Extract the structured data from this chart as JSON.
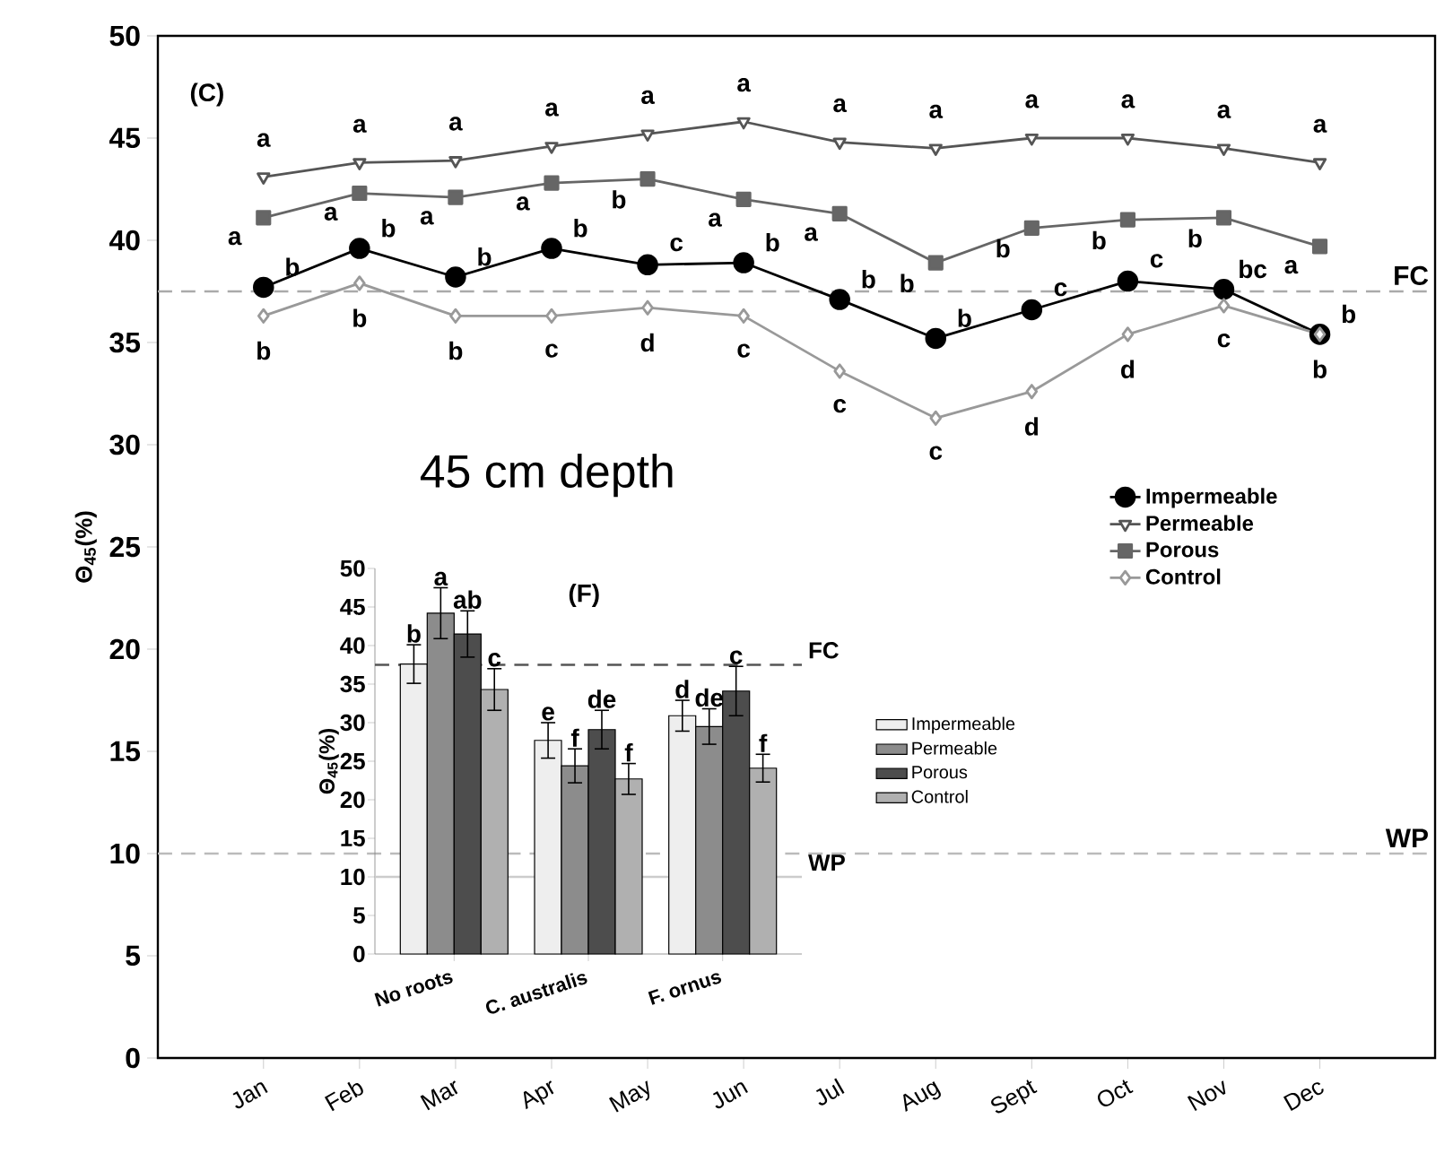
{
  "chart_data": [
    {
      "type": "line",
      "ylabel": "Θ$_{45}$(%)",
      "categories": [
        "Jan",
        "Feb",
        "Mar",
        "Apr",
        "May",
        "Jun",
        "Jul",
        "Aug",
        "Sept",
        "Oct",
        "Nov",
        "Dec"
      ],
      "series": [
        {
          "name": "Impermeable",
          "color": "#000000",
          "marker": "circle",
          "values": [
            37.7,
            39.6,
            38.2,
            39.6,
            38.8,
            38.9,
            37.1,
            35.2,
            36.6,
            38.0,
            37.6,
            35.4
          ]
        },
        {
          "name": "Permeable",
          "color": "#555555",
          "marker": "triangle",
          "values": [
            43.1,
            43.8,
            43.9,
            44.6,
            45.2,
            45.8,
            44.8,
            44.5,
            45.0,
            45.0,
            44.5,
            43.8
          ]
        },
        {
          "name": "Porous",
          "color": "#666666",
          "marker": "square",
          "values": [
            41.1,
            42.3,
            42.1,
            42.8,
            43.0,
            42.0,
            41.3,
            38.9,
            40.6,
            41.0,
            41.1,
            39.7
          ]
        },
        {
          "name": "Control",
          "color": "#999999",
          "marker": "diamond",
          "values": [
            36.3,
            37.9,
            36.3,
            36.3,
            36.7,
            36.3,
            33.6,
            31.3,
            32.6,
            35.4,
            36.8,
            35.4
          ]
        }
      ],
      "ylim": [
        0,
        50
      ],
      "yticks": [
        0,
        5,
        10,
        15,
        20,
        25,
        30,
        35,
        40,
        45,
        50
      ],
      "legend": "right",
      "line_style": "solid",
      "ref_lines": [
        {
          "axis": "y",
          "value": 37.5,
          "label": "FC",
          "color": "#aaaaaa",
          "line_style": "dashed"
        },
        {
          "axis": "y",
          "value": 10,
          "label": "WP",
          "color": "#bbbbbb",
          "line_style": "dashed"
        }
      ],
      "annotations": [
        "(C)",
        "45 cm depth",
        {
          "text": "a",
          "x": "Jan",
          "y": 43.1
        },
        {
          "text": "a",
          "x": "Feb",
          "y": 43.8
        },
        {
          "text": "a",
          "x": "Mar",
          "y": 43.9
        },
        {
          "text": "a",
          "x": "Apr",
          "y": 44.6
        },
        {
          "text": "a",
          "x": "May",
          "y": 45.2
        },
        {
          "text": "a",
          "x": "Jun",
          "y": 45.8
        },
        {
          "text": "a",
          "x": "Jul",
          "y": 44.8
        },
        {
          "text": "a",
          "x": "Aug",
          "y": 44.5
        },
        {
          "text": "a",
          "x": "Sept",
          "y": 45.0
        },
        {
          "text": "a",
          "x": "Oct",
          "y": 45.0
        },
        {
          "text": "a",
          "x": "Nov",
          "y": 44.5
        },
        {
          "text": "a",
          "x": "Dec",
          "y": 43.8
        },
        {
          "text": "a",
          "x": "Jan",
          "y": 41.1
        },
        {
          "text": "a",
          "x": "Feb",
          "y": 42.3
        },
        {
          "text": "a",
          "x": "Mar",
          "y": 42.1
        },
        {
          "text": "a",
          "x": "Apr",
          "y": 42.8
        },
        {
          "text": "b",
          "x": "May",
          "y": 43.0
        },
        {
          "text": "a",
          "x": "Jun",
          "y": 42.0
        },
        {
          "text": "a",
          "x": "Jul",
          "y": 41.3
        },
        {
          "text": "b",
          "x": "Aug",
          "y": 38.9
        },
        {
          "text": "b",
          "x": "Sept",
          "y": 40.6
        },
        {
          "text": "b",
          "x": "Oct",
          "y": 41.0
        },
        {
          "text": "b",
          "x": "Nov",
          "y": 41.1
        },
        {
          "text": "a",
          "x": "Dec",
          "y": 39.7
        },
        {
          "text": "b",
          "x": "Jan",
          "y": 37.7
        },
        {
          "text": "b",
          "x": "Feb",
          "y": 39.6
        },
        {
          "text": "b",
          "x": "Mar",
          "y": 38.2
        },
        {
          "text": "b",
          "x": "Apr",
          "y": 39.6
        },
        {
          "text": "c",
          "x": "May",
          "y": 38.8
        },
        {
          "text": "b",
          "x": "Jun",
          "y": 38.9
        },
        {
          "text": "b",
          "x": "Jul",
          "y": 37.1
        },
        {
          "text": "b",
          "x": "Aug",
          "y": 35.2
        },
        {
          "text": "c",
          "x": "Sept",
          "y": 36.6
        },
        {
          "text": "c",
          "x": "Oct",
          "y": 38.0
        },
        {
          "text": "bc",
          "x": "Nov",
          "y": 37.6
        },
        {
          "text": "b",
          "x": "Dec",
          "y": 35.4
        },
        {
          "text": "b",
          "x": "Jan",
          "y": 36.3
        },
        {
          "text": "b",
          "x": "Feb",
          "y": 37.9
        },
        {
          "text": "b",
          "x": "Mar",
          "y": 36.3
        },
        {
          "text": "c",
          "x": "Apr",
          "y": 36.3
        },
        {
          "text": "d",
          "x": "May",
          "y": 36.7
        },
        {
          "text": "c",
          "x": "Jun",
          "y": 36.3
        },
        {
          "text": "c",
          "x": "Jul",
          "y": 33.6
        },
        {
          "text": "c",
          "x": "Aug",
          "y": 31.3
        },
        {
          "text": "d",
          "x": "Sept",
          "y": 32.6
        },
        {
          "text": "d",
          "x": "Oct",
          "y": 35.4
        },
        {
          "text": "c",
          "x": "Nov",
          "y": 36.8
        },
        {
          "text": "b",
          "x": "Dec",
          "y": 35.4
        }
      ]
    },
    {
      "type": "bar",
      "ylabel": "Θ$_{45}$(%)",
      "categories": [
        "No roots",
        "C. australis",
        "F. ornus"
      ],
      "series": [
        {
          "name": "Impermeable",
          "color": "#eeeeee",
          "values": [
            37.6,
            27.7,
            30.9
          ],
          "errors": [
            2.5,
            2.3,
            2.0
          ]
        },
        {
          "name": "Permeable",
          "color": "#8c8c8c",
          "values": [
            44.2,
            24.4,
            29.5
          ],
          "errors": [
            3.3,
            2.2,
            2.3
          ]
        },
        {
          "name": "Porous",
          "color": "#4d4d4d",
          "values": [
            41.5,
            29.1,
            34.1
          ],
          "errors": [
            3.0,
            2.5,
            3.2
          ]
        },
        {
          "name": "Control",
          "color": "#b0b0b0",
          "values": [
            34.3,
            22.7,
            24.1
          ],
          "errors": [
            2.7,
            2.0,
            1.8
          ]
        }
      ],
      "ylim": [
        0,
        50
      ],
      "yticks": [
        0,
        5,
        10,
        15,
        20,
        25,
        30,
        35,
        40,
        45,
        50
      ],
      "legend": "right",
      "ref_lines": [
        {
          "axis": "y",
          "value": 37.5,
          "label": "FC",
          "color": "#555555",
          "line_style": "dashed"
        },
        {
          "axis": "y",
          "value": 10,
          "label": "WP",
          "color": "#cccccc",
          "line_style": "solid"
        }
      ],
      "annotations": [
        "(F)",
        {
          "text": "b",
          "x": "No roots",
          "y": 37.6
        },
        {
          "text": "a",
          "x": "No roots",
          "y": 44.2
        },
        {
          "text": "ab",
          "x": "No roots",
          "y": 41.5
        },
        {
          "text": "c",
          "x": "No roots",
          "y": 34.3
        },
        {
          "text": "e",
          "x": "C. australis",
          "y": 27.7
        },
        {
          "text": "f",
          "x": "C. australis",
          "y": 24.4
        },
        {
          "text": "de",
          "x": "C. australis",
          "y": 29.1
        },
        {
          "text": "f",
          "x": "C. australis",
          "y": 22.7
        },
        {
          "text": "d",
          "x": "F. ornus",
          "y": 30.9
        },
        {
          "text": "de",
          "x": "F. ornus",
          "y": 29.5
        },
        {
          "text": "c",
          "x": "F. ornus",
          "y": 34.1
        },
        {
          "text": "f",
          "x": "F. ornus",
          "y": 24.1
        }
      ]
    }
  ]
}
